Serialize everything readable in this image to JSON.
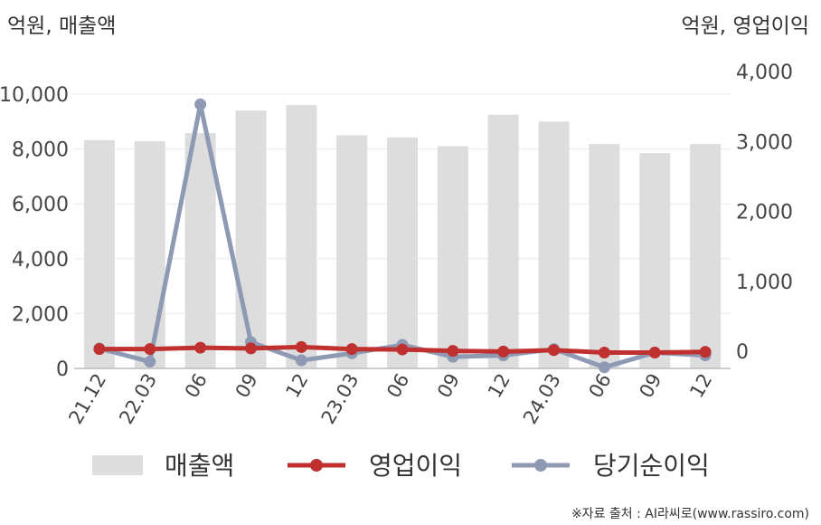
{
  "chart_data": {
    "type": "bar+line",
    "left_unit": "억원, 매출액",
    "right_unit": "억원, 영업이익",
    "categories": [
      "21.12",
      "22.03",
      "06",
      "09",
      "12",
      "23.03",
      "06",
      "09",
      "12",
      "24.03",
      "06",
      "09",
      "12"
    ],
    "left_axis": {
      "min": 0,
      "max": 10000,
      "ticks": [
        "0",
        "2,000",
        "4,000",
        "6,000",
        "8,000",
        "10,000"
      ]
    },
    "right_axis": {
      "min": -200,
      "max": 3800,
      "ticks": [
        "0",
        "1,000",
        "2,000",
        "3,000",
        "4,000"
      ]
    },
    "series": [
      {
        "name": "매출액",
        "type": "bar",
        "axis": "left",
        "color": "#dddddd",
        "values": [
          8320,
          8280,
          8580,
          9400,
          9600,
          8500,
          8420,
          8100,
          9250,
          9000,
          8180,
          7850,
          8180
        ]
      },
      {
        "name": "영업이익",
        "type": "line",
        "axis": "right",
        "color": "#c0302e",
        "values": [
          30,
          30,
          50,
          40,
          60,
          30,
          25,
          5,
          -5,
          15,
          -20,
          -20,
          -10
        ]
      },
      {
        "name": "당기순이익",
        "type": "line",
        "axis": "right",
        "color": "#8e9ab3",
        "values": [
          40,
          -150,
          3530,
          130,
          -130,
          -30,
          90,
          -80,
          -60,
          30,
          -230,
          -20,
          -60
        ]
      }
    ],
    "source": "※자료 출처 : AI라씨로(www.rassiro.com)"
  }
}
